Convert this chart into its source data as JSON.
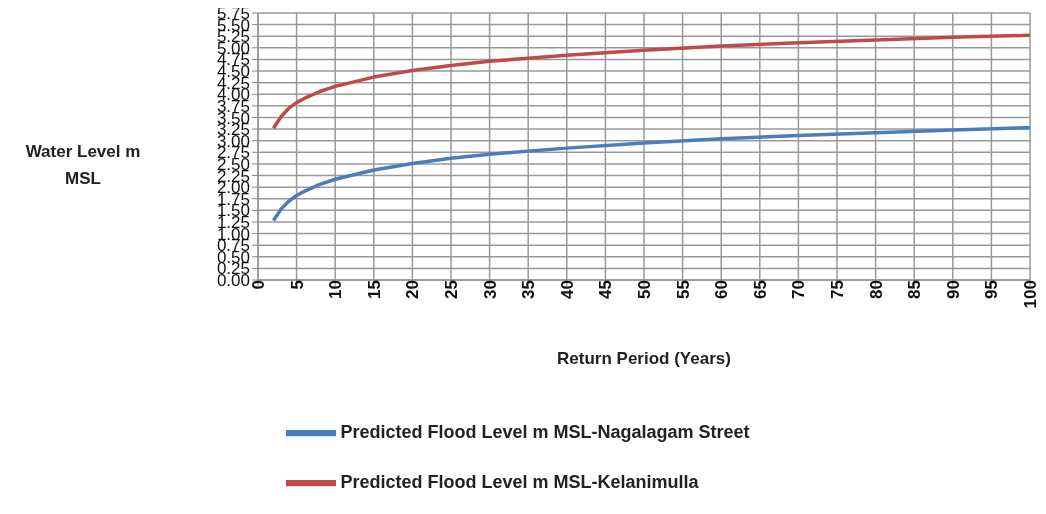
{
  "chart_data": {
    "type": "line",
    "xlabel": "Return Period (Years)",
    "ylabel": "Water Level m MSL",
    "x": [
      2,
      3,
      4,
      5,
      6,
      8,
      10,
      15,
      20,
      25,
      30,
      40,
      50,
      60,
      70,
      80,
      90,
      100
    ],
    "series": [
      {
        "name": "Predicted Flood Level m MSL-Nagalagam Street",
        "color": "#4a7ebb",
        "values": [
          1.28,
          1.53,
          1.7,
          1.82,
          1.91,
          2.06,
          2.17,
          2.37,
          2.51,
          2.62,
          2.71,
          2.84,
          2.95,
          3.04,
          3.11,
          3.17,
          3.23,
          3.28
        ]
      },
      {
        "name": "Predicted Flood Level m MSL-Kelanimulla",
        "color": "#be4b48",
        "values": [
          3.27,
          3.52,
          3.7,
          3.82,
          3.91,
          4.06,
          4.17,
          4.37,
          4.51,
          4.62,
          4.71,
          4.84,
          4.95,
          5.04,
          5.11,
          5.17,
          5.23,
          5.27
        ]
      }
    ],
    "xlim": [
      0,
      100
    ],
    "xticks": [
      0,
      5,
      10,
      15,
      20,
      25,
      30,
      35,
      40,
      45,
      50,
      55,
      60,
      65,
      70,
      75,
      80,
      85,
      90,
      95,
      100
    ],
    "ylim": [
      0,
      5.75
    ],
    "yticks": [
      {
        "value": 0,
        "label": "0.00"
      },
      {
        "value": 0.25,
        "label": "0.25"
      },
      {
        "value": 0.5,
        "label": "0.50"
      },
      {
        "value": 0.75,
        "label": "0.75"
      },
      {
        "value": 1,
        "label": "1.00"
      },
      {
        "value": 1.25,
        "label": "1.25"
      },
      {
        "value": 1.5,
        "label": "1.50"
      },
      {
        "value": 1.75,
        "label": "1.75"
      },
      {
        "value": 2,
        "label": "2.00"
      },
      {
        "value": 2.25,
        "label": "2.25"
      },
      {
        "value": 2.5,
        "label": "2.50"
      },
      {
        "value": 2.75,
        "label": "2.75"
      },
      {
        "value": 3,
        "label": "3.00"
      },
      {
        "value": 3.25,
        "label": "3.25"
      },
      {
        "value": 3.5,
        "label": "3.50"
      },
      {
        "value": 3.75,
        "label": "3.75"
      },
      {
        "value": 4,
        "label": "4.00"
      },
      {
        "value": 4.25,
        "label": "4.25"
      },
      {
        "value": 4.5,
        "label": "4.50"
      },
      {
        "value": 4.75,
        "label": "4.75"
      },
      {
        "value": 5,
        "label": "5.00"
      },
      {
        "value": 5.25,
        "label": "5.25"
      },
      {
        "value": 5.5,
        "label": "5.50"
      },
      {
        "value": 5.75,
        "label": "5.75"
      }
    ],
    "grid": true,
    "legend": "bottom",
    "marker": "none",
    "line_style": "solid"
  }
}
